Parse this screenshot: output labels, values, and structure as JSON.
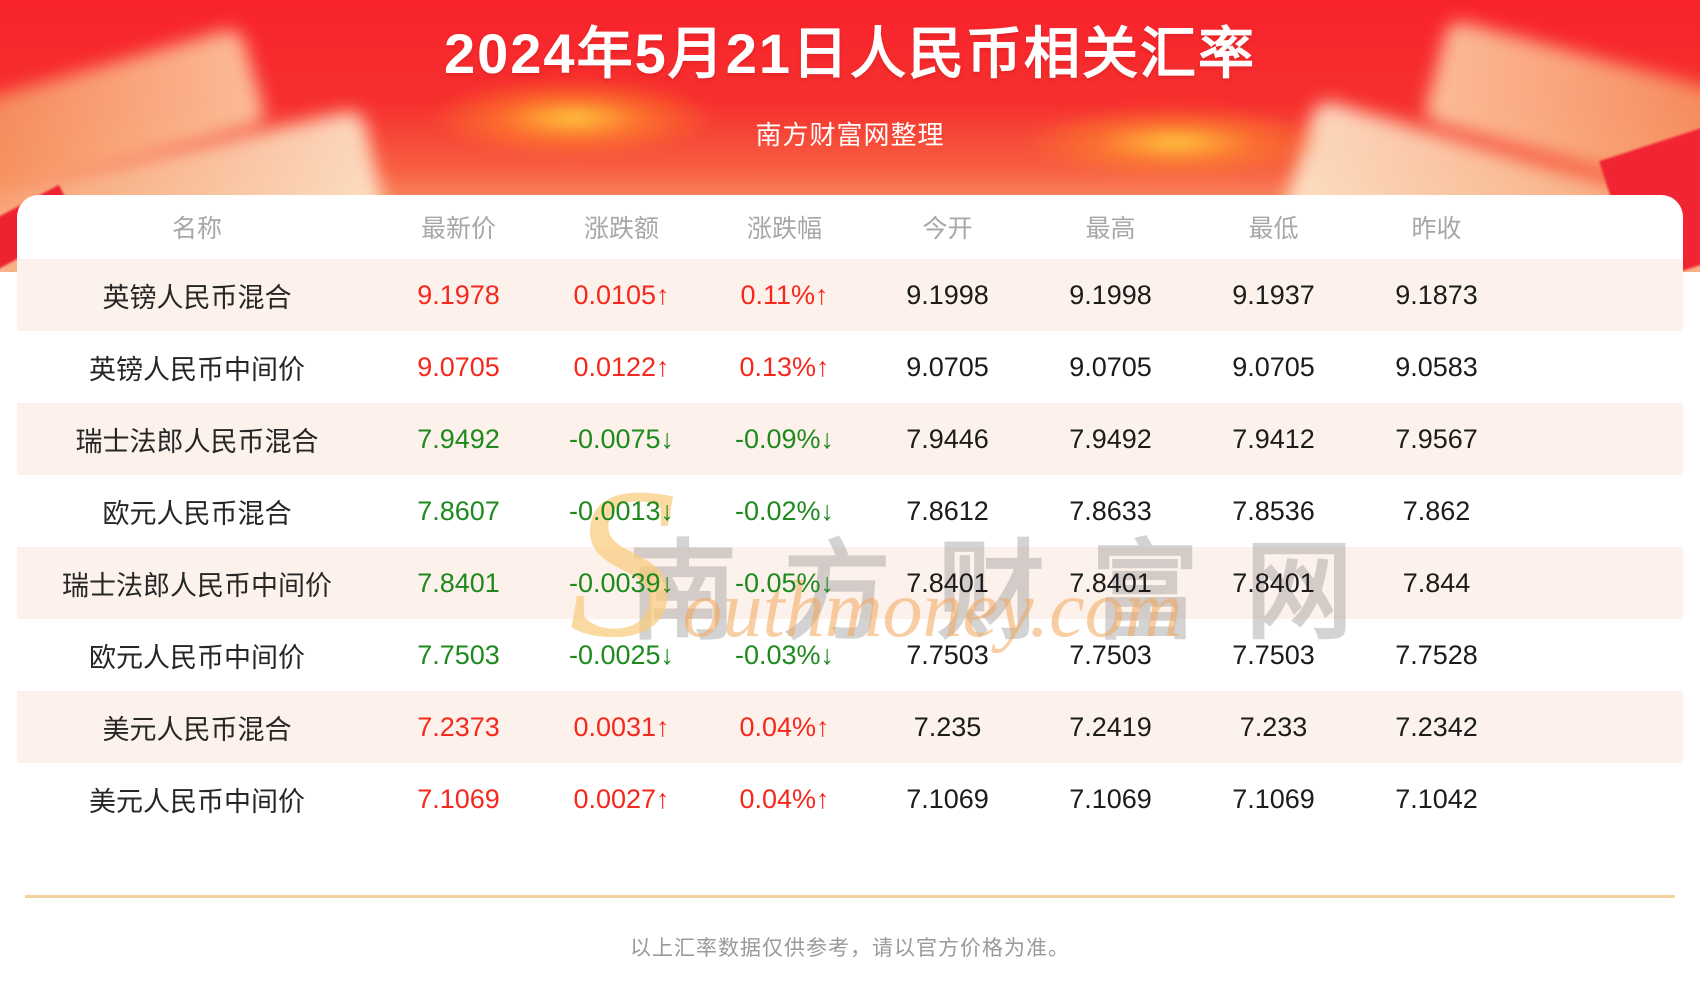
{
  "header": {
    "title": "2024年5月21日人民币相关汇率",
    "subtitle": "南方财富网整理"
  },
  "table": {
    "columns": [
      "名称",
      "最新价",
      "涨跌额",
      "涨跌幅",
      "今开",
      "最高",
      "最低",
      "昨收"
    ],
    "rows": [
      {
        "name": "英镑人民币混合",
        "latest": "9.1978",
        "change": "0.0105↑",
        "pct": "0.11%↑",
        "open": "9.1998",
        "high": "9.1998",
        "low": "9.1937",
        "prev": "9.1873",
        "direction": "up"
      },
      {
        "name": "英镑人民币中间价",
        "latest": "9.0705",
        "change": "0.0122↑",
        "pct": "0.13%↑",
        "open": "9.0705",
        "high": "9.0705",
        "low": "9.0705",
        "prev": "9.0583",
        "direction": "up"
      },
      {
        "name": "瑞士法郎人民币混合",
        "latest": "7.9492",
        "change": "-0.0075↓",
        "pct": "-0.09%↓",
        "open": "7.9446",
        "high": "7.9492",
        "low": "7.9412",
        "prev": "7.9567",
        "direction": "down"
      },
      {
        "name": "欧元人民币混合",
        "latest": "7.8607",
        "change": "-0.0013↓",
        "pct": "-0.02%↓",
        "open": "7.8612",
        "high": "7.8633",
        "low": "7.8536",
        "prev": "7.862",
        "direction": "down"
      },
      {
        "name": "瑞士法郎人民币中间价",
        "latest": "7.8401",
        "change": "-0.0039↓",
        "pct": "-0.05%↓",
        "open": "7.8401",
        "high": "7.8401",
        "low": "7.8401",
        "prev": "7.844",
        "direction": "down"
      },
      {
        "name": "欧元人民币中间价",
        "latest": "7.7503",
        "change": "-0.0025↓",
        "pct": "-0.03%↓",
        "open": "7.7503",
        "high": "7.7503",
        "low": "7.7503",
        "prev": "7.7528",
        "direction": "down"
      },
      {
        "name": "美元人民币混合",
        "latest": "7.2373",
        "change": "0.0031↑",
        "pct": "0.04%↑",
        "open": "7.235",
        "high": "7.2419",
        "low": "7.233",
        "prev": "7.2342",
        "direction": "up"
      },
      {
        "name": "美元人民币中间价",
        "latest": "7.1069",
        "change": "0.0027↑",
        "pct": "0.04%↑",
        "open": "7.1069",
        "high": "7.1069",
        "low": "7.1069",
        "prev": "7.1042",
        "direction": "up"
      }
    ]
  },
  "watermark": {
    "cn": "南方财富网",
    "en": "Southmoney.com"
  },
  "footer": {
    "note": "以上汇率数据仅供参考，请以官方价格为准。"
  },
  "colors": {
    "banner_red": "#f8232c",
    "up_red": "#f6281e",
    "down_green": "#1e8a1e",
    "row_alt_bg": "#fdf2eb",
    "divider_tan": "#f4d2a0",
    "header_gray": "#a7a7a7"
  }
}
